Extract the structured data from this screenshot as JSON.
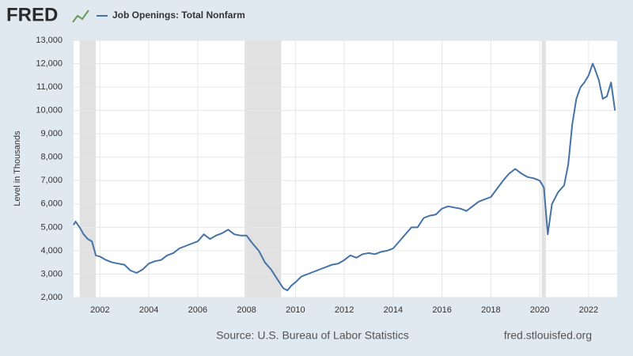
{
  "logo": "FRED",
  "chart_data": {
    "type": "line",
    "series": [
      {
        "name": "Job Openings: Total Nonfarm",
        "color": "#4572a7",
        "x": [
          2000.92,
          2001.0,
          2001.17,
          2001.33,
          2001.5,
          2001.67,
          2001.83,
          2002.0,
          2002.25,
          2002.5,
          2002.75,
          2003.0,
          2003.25,
          2003.5,
          2003.75,
          2004.0,
          2004.25,
          2004.5,
          2004.75,
          2005.0,
          2005.25,
          2005.5,
          2005.75,
          2006.0,
          2006.25,
          2006.5,
          2006.75,
          2007.0,
          2007.25,
          2007.5,
          2007.75,
          2008.0,
          2008.25,
          2008.5,
          2008.75,
          2009.0,
          2009.25,
          2009.5,
          2009.67,
          2009.83,
          2010.0,
          2010.25,
          2010.5,
          2010.75,
          2011.0,
          2011.25,
          2011.5,
          2011.75,
          2012.0,
          2012.25,
          2012.5,
          2012.75,
          2013.0,
          2013.25,
          2013.5,
          2013.75,
          2014.0,
          2014.25,
          2014.5,
          2014.75,
          2015.0,
          2015.25,
          2015.5,
          2015.75,
          2016.0,
          2016.25,
          2016.5,
          2016.75,
          2017.0,
          2017.25,
          2017.5,
          2017.75,
          2018.0,
          2018.25,
          2018.5,
          2018.75,
          2019.0,
          2019.25,
          2019.5,
          2019.75,
          2020.0,
          2020.17,
          2020.33,
          2020.5,
          2020.75,
          2021.0,
          2021.17,
          2021.33,
          2021.5,
          2021.67,
          2021.83,
          2022.0,
          2022.17,
          2022.25,
          2022.42,
          2022.58,
          2022.75,
          2022.92,
          2023.08
        ],
        "values": [
          5100,
          5250,
          5000,
          4700,
          4500,
          4400,
          3800,
          3750,
          3600,
          3500,
          3450,
          3400,
          3150,
          3050,
          3200,
          3450,
          3550,
          3600,
          3800,
          3900,
          4100,
          4200,
          4300,
          4400,
          4700,
          4500,
          4650,
          4750,
          4900,
          4700,
          4650,
          4650,
          4300,
          4000,
          3500,
          3200,
          2800,
          2400,
          2300,
          2500,
          2650,
          2900,
          3000,
          3100,
          3200,
          3300,
          3400,
          3450,
          3600,
          3800,
          3700,
          3850,
          3900,
          3850,
          3950,
          4000,
          4100,
          4400,
          4700,
          5000,
          5000,
          5400,
          5500,
          5550,
          5800,
          5900,
          5850,
          5800,
          5700,
          5900,
          6100,
          6200,
          6300,
          6650,
          7000,
          7300,
          7500,
          7300,
          7150,
          7100,
          7000,
          6700,
          4700,
          6000,
          6500,
          6800,
          7700,
          9400,
          10500,
          11000,
          11200,
          11500,
          12000,
          11800,
          11300,
          10500,
          10600,
          11200,
          10000
        ]
      }
    ],
    "recessions": [
      [
        2001.17,
        2001.83
      ],
      [
        2007.92,
        2009.42
      ],
      [
        2020.08,
        2020.25
      ]
    ],
    "ylabel": "Level in Thousands",
    "xlim": [
      2000.92,
      2023.17
    ],
    "xticks": [
      2002,
      2004,
      2006,
      2008,
      2010,
      2012,
      2014,
      2016,
      2018,
      2020,
      2022
    ],
    "ylim": [
      2000,
      13000
    ],
    "yticks": [
      {
        "value": 2000,
        "label": "2,000"
      },
      {
        "value": 3000,
        "label": "3,000"
      },
      {
        "value": 4000,
        "label": "4,000"
      },
      {
        "value": 5000,
        "label": "5,000"
      },
      {
        "value": 6000,
        "label": "6,000"
      },
      {
        "value": 7000,
        "label": "7,000"
      },
      {
        "value": 8000,
        "label": "8,000"
      },
      {
        "value": 9000,
        "label": "9,000"
      },
      {
        "value": 10000,
        "label": "10,000"
      },
      {
        "value": 11000,
        "label": "11,000"
      },
      {
        "value": 12000,
        "label": "12,000"
      },
      {
        "value": 13000,
        "label": "13,000"
      }
    ],
    "grid": true,
    "source": "Source: U.S. Bureau of Labor Statistics",
    "site": "fred.stlouisfed.org"
  }
}
